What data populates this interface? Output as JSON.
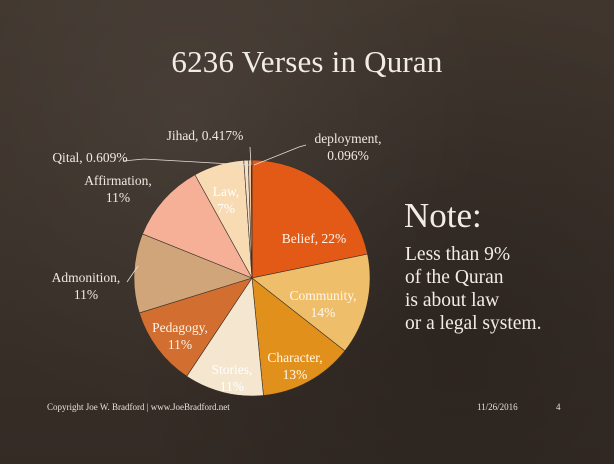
{
  "title": "6236 Verses in Quran",
  "note": {
    "heading": "Note:",
    "lines": [
      "Less than 9%",
      "of the Quran",
      "is about law",
      "or a legal system."
    ]
  },
  "footer": {
    "copyright": "Copyright Joe W. Bradford | www.JoeBradford.net",
    "date": "11/26/2016",
    "page": "4"
  },
  "chart_data": {
    "type": "pie",
    "title": "6236 Verses in Quran",
    "units": "percent",
    "slices": [
      {
        "label": "Belief, 22%",
        "value": 22,
        "color": "#e25a16"
      },
      {
        "label": "Community, 14%",
        "value": 14,
        "color": "#efbe6b"
      },
      {
        "label": "Character, 13%",
        "value": 13,
        "color": "#e2901c"
      },
      {
        "label": "Stories, 11%",
        "value": 11,
        "color": "#f4e6cf"
      },
      {
        "label": "Pedagogy, 11%",
        "value": 11,
        "color": "#d16e30"
      },
      {
        "label": "Admonition, 11%",
        "value": 11,
        "color": "#d1a57a"
      },
      {
        "label": "Affirmation, 11%",
        "value": 11,
        "color": "#f6b097"
      },
      {
        "label": "Law, 7%",
        "value": 7,
        "color": "#f8dbb3"
      },
      {
        "label": "Qital, 0.609%",
        "value": 0.609,
        "color": "#f4dfc9"
      },
      {
        "label": "Jihad, 0.417%",
        "value": 0.417,
        "color": "#f0c7a1"
      },
      {
        "label": "deployment, 0.096%",
        "value": 0.096,
        "color": "#c98656"
      }
    ]
  }
}
